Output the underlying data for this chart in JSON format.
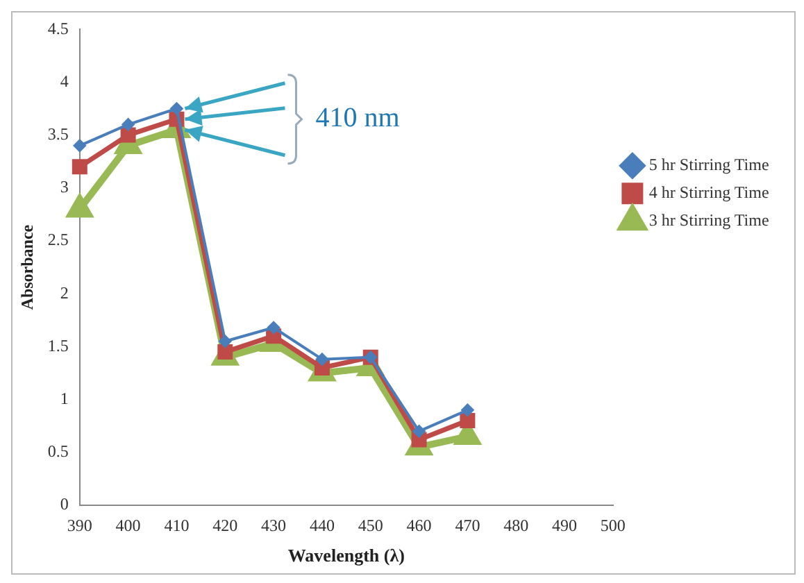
{
  "chart_data": {
    "type": "line",
    "xlabel": "Wavelength (λ)",
    "ylabel": "Absorbance",
    "categories": [
      "390",
      "400",
      "410",
      "420",
      "430",
      "440",
      "450",
      "460",
      "470",
      "480",
      "490",
      "500"
    ],
    "series": [
      {
        "name": "5 hr Stirring Time",
        "color": "#4a7ebb",
        "marker": "diamond",
        "values": [
          3.4,
          3.6,
          3.75,
          1.55,
          1.68,
          1.38,
          1.4,
          0.7,
          0.9,
          null,
          null,
          null
        ]
      },
      {
        "name": "4 hr Stirring Time",
        "color": "#be4b48",
        "marker": "square",
        "values": [
          3.2,
          3.5,
          3.65,
          1.45,
          1.6,
          1.3,
          1.4,
          0.62,
          0.8,
          null,
          null,
          null
        ]
      },
      {
        "name": "3 hr Stirring Time",
        "color": "#98b954",
        "marker": "triangle",
        "values": [
          2.8,
          3.4,
          3.55,
          1.4,
          1.53,
          1.25,
          1.3,
          0.55,
          0.65,
          null,
          null,
          null
        ]
      }
    ],
    "ylim": [
      0,
      4.5
    ],
    "yticks": [
      0,
      0.5,
      1,
      1.5,
      2,
      2.5,
      3,
      3.5,
      4,
      4.5
    ],
    "grid": false,
    "legend": "right",
    "annotations": [
      {
        "text": "410 nm",
        "x": "410",
        "y": 3.65
      }
    ]
  }
}
